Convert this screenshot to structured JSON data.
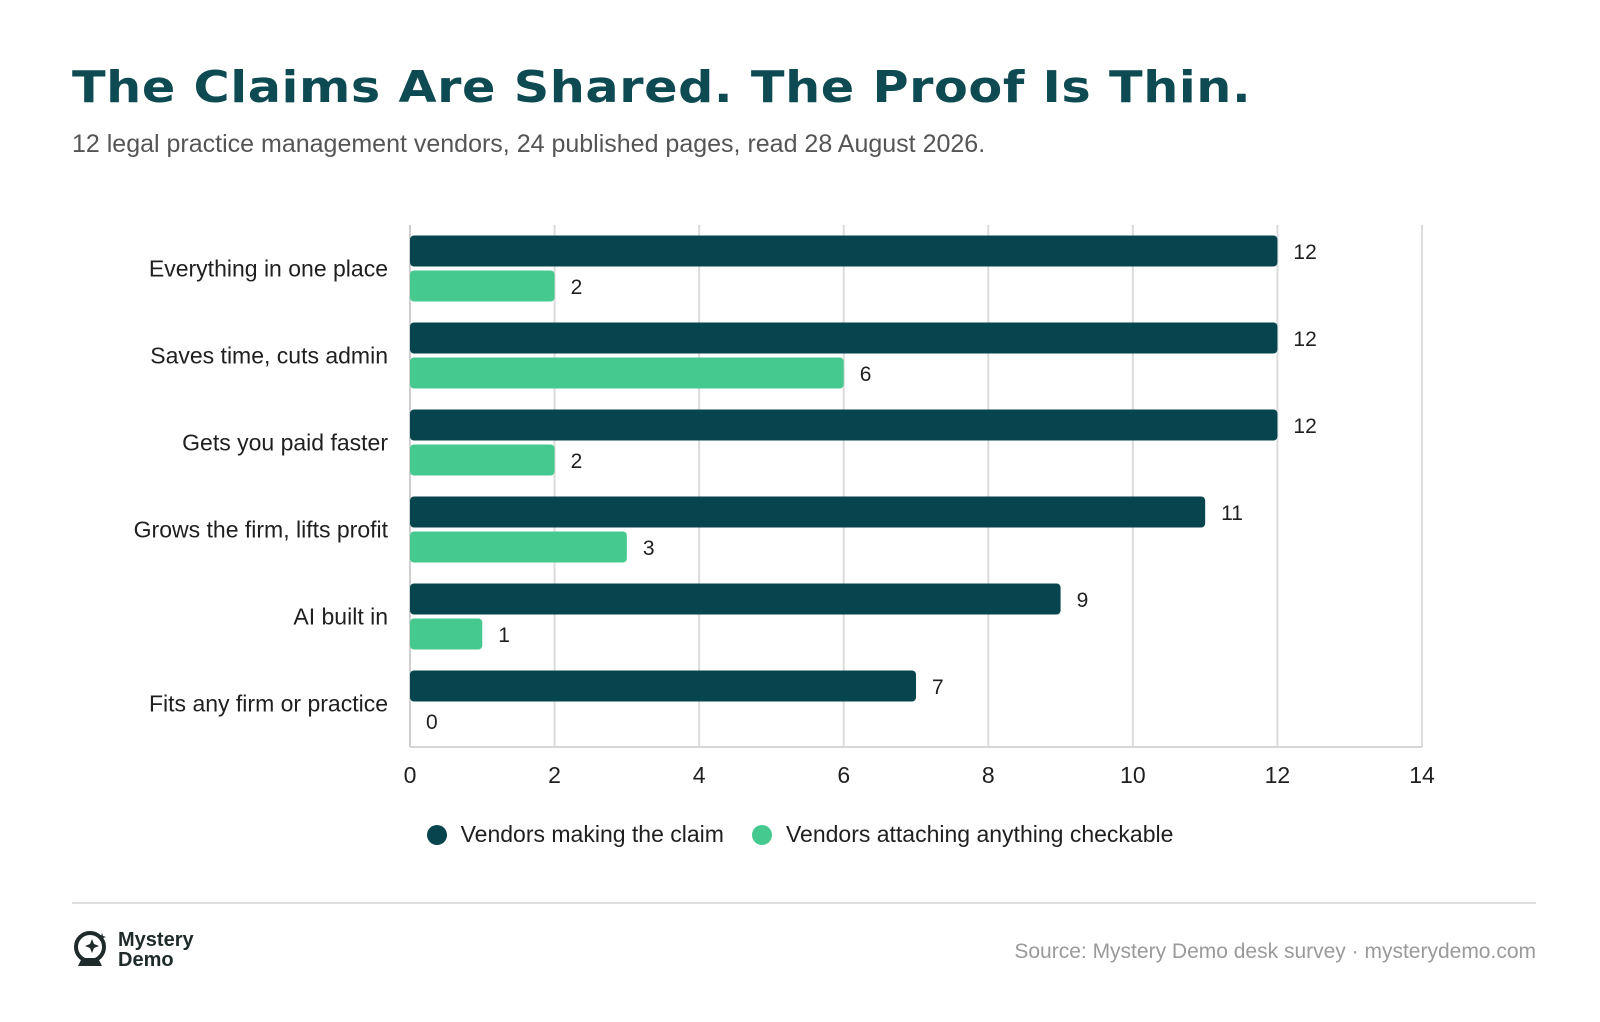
{
  "header": {
    "title": "The Claims Are Shared. The Proof Is Thin.",
    "subtitle": "12 legal practice management vendors, 24 published pages, read 28 August 2026."
  },
  "chart_data": {
    "type": "bar",
    "orientation": "horizontal",
    "categories": [
      "Everything in one place",
      "Saves time, cuts admin",
      "Gets you paid faster",
      "Grows the firm, lifts profit",
      "AI built in",
      "Fits any firm or practice"
    ],
    "series": [
      {
        "name": "Vendors making the claim",
        "color": "#06454e",
        "values": [
          12,
          12,
          12,
          11,
          9,
          7
        ]
      },
      {
        "name": "Vendors attaching anything checkable",
        "color": "#45c98f",
        "values": [
          2,
          6,
          2,
          3,
          1,
          0
        ]
      }
    ],
    "xlim": [
      0,
      14
    ],
    "xticks": [
      0,
      2,
      4,
      6,
      8,
      10,
      12,
      14
    ],
    "grid": true,
    "legend_position": "bottom-center",
    "data_labels": true
  },
  "footer": {
    "logo_line1": "Mystery",
    "logo_line2": "Demo",
    "source": "Source: Mystery Demo desk survey · mysterydemo.com"
  }
}
